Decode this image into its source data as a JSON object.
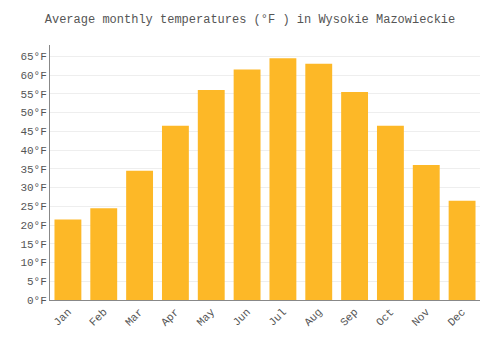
{
  "chart_data": {
    "type": "bar",
    "title": "Average monthly temperatures (°F ) in Wysokie Mazowieckie",
    "categories": [
      "Jan",
      "Feb",
      "Mar",
      "Apr",
      "May",
      "Jun",
      "Jul",
      "Aug",
      "Sep",
      "Oct",
      "Nov",
      "Dec"
    ],
    "values": [
      21.5,
      24.5,
      34.5,
      46.5,
      56.0,
      61.5,
      64.5,
      63.0,
      55.5,
      46.5,
      36.0,
      26.5
    ],
    "color": "#FDB827",
    "ylim": [
      0,
      68
    ],
    "yticks": [
      {
        "value": 0,
        "label": "0°F"
      },
      {
        "value": 5,
        "label": "5°F"
      },
      {
        "value": 10,
        "label": "10°F"
      },
      {
        "value": 15,
        "label": "15°F"
      },
      {
        "value": 20,
        "label": "20°F"
      },
      {
        "value": 25,
        "label": "25°F"
      },
      {
        "value": 30,
        "label": "30°F"
      },
      {
        "value": 35,
        "label": "35°F"
      },
      {
        "value": 40,
        "label": "40°F"
      },
      {
        "value": 45,
        "label": "45°F"
      },
      {
        "value": 50,
        "label": "50°F"
      },
      {
        "value": 55,
        "label": "55°F"
      },
      {
        "value": 60,
        "label": "60°F"
      },
      {
        "value": 65,
        "label": "65°F"
      }
    ],
    "grid": true
  }
}
